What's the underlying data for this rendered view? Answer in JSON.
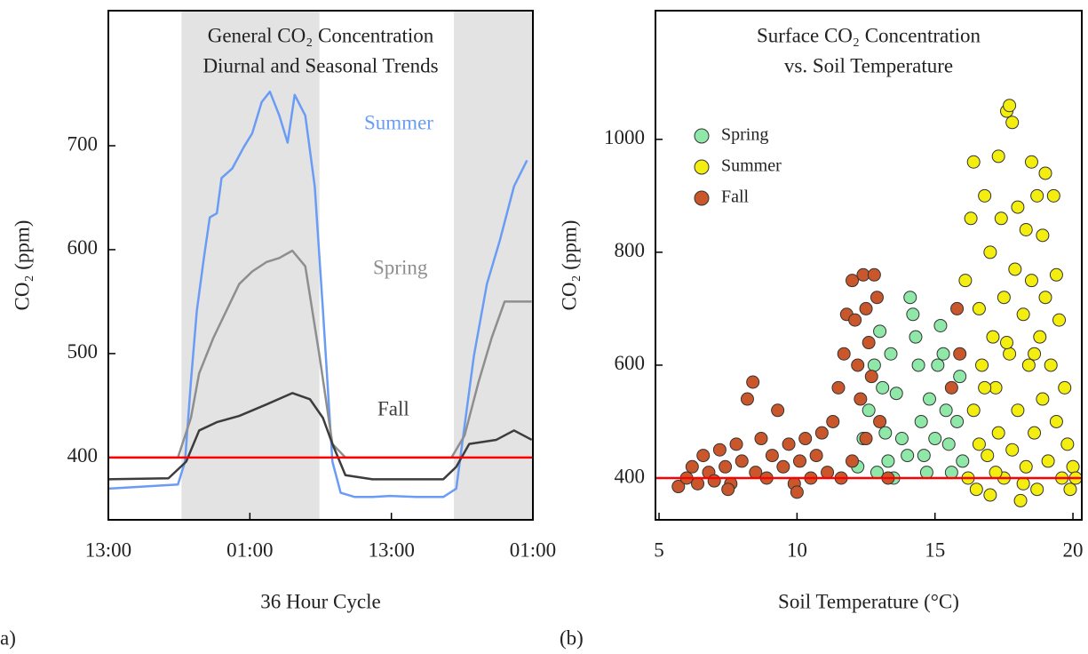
{
  "chart_data": [
    {
      "type": "line",
      "panel_label": "a)",
      "title": [
        "General CO₂ Concentration",
        "Diurnal and Seasonal Trends"
      ],
      "xlabel": "36 Hour Cycle",
      "ylabel": "CO₂ (ppm)",
      "xlim": [
        0,
        36
      ],
      "ylim": [
        340,
        830
      ],
      "xticks": [
        {
          "value": 0,
          "label": "13:00"
        },
        {
          "value": 12,
          "label": "01:00"
        },
        {
          "value": 24,
          "label": "13:00"
        },
        {
          "value": 36,
          "label": "01:00"
        }
      ],
      "yticks": [
        400,
        500,
        600,
        700
      ],
      "reference_line": 400,
      "reference_color": "#ff0000",
      "shaded_spans": [
        [
          6.2,
          17.9
        ],
        [
          29.3,
          36
        ]
      ],
      "series": [
        {
          "name": "Summer",
          "color": "#6a9cf5",
          "x": [
            0,
            5.9,
            6.5,
            7.0,
            7.5,
            8.1,
            8.6,
            9.2,
            9.6,
            10.5,
            11.5,
            12.2,
            13.0,
            13.7,
            14.5,
            15.2,
            15.8,
            16.7,
            17.5,
            18.2,
            19.0,
            19.7,
            20.9,
            22.4,
            23.9,
            26.1,
            28.4,
            29.5,
            30.0,
            31.0,
            32.1,
            33.2,
            34.4,
            35.5
          ],
          "values": [
            370,
            374,
            396,
            473,
            541,
            592,
            631,
            635,
            669,
            678,
            699,
            712,
            742,
            752,
            729,
            703,
            749,
            729,
            661,
            541,
            396,
            366,
            362,
            362,
            363,
            362,
            362,
            370,
            413,
            498,
            567,
            609,
            661,
            686
          ]
        },
        {
          "name": "Spring",
          "color": "#8e8e8e",
          "x": [
            0,
            5.9,
            7.0,
            7.7,
            8.9,
            10.0,
            11.1,
            12.2,
            13.4,
            14.5,
            15.6,
            16.7,
            17.9,
            19.0,
            20.1,
            24.6,
            29.1,
            30.2,
            31.4,
            32.5,
            33.6,
            35.9
          ],
          "values": [
            400,
            400,
            438,
            481,
            515,
            541,
            567,
            579,
            588,
            592,
            599,
            584,
            498,
            413,
            400,
            400,
            400,
            421,
            473,
            515,
            550,
            550
          ]
        },
        {
          "name": "Fall",
          "color": "#3c3c3c",
          "x": [
            0,
            5.1,
            6.6,
            7.7,
            9.2,
            11.1,
            13.4,
            15.6,
            17.1,
            18.2,
            19.0,
            20.1,
            22.4,
            28.4,
            29.5,
            30.6,
            32.9,
            34.4,
            35.9
          ],
          "values": [
            379,
            380,
            396,
            426,
            434,
            440,
            451,
            462,
            456,
            438,
            413,
            383,
            379,
            379,
            391,
            413,
            417,
            426,
            417
          ]
        }
      ]
    },
    {
      "type": "scatter",
      "panel_label": "(b)",
      "title": [
        "Surface CO₂ Concentration",
        "vs. Soil Temperature"
      ],
      "xlabel": "Soil Temperature (°C)",
      "ylabel": "CO₂ (ppm)",
      "xlim": [
        4.87,
        20.32
      ],
      "ylim": [
        326,
        1228
      ],
      "xticks": [
        5,
        10,
        15,
        20
      ],
      "yticks": [
        400,
        600,
        800,
        1000
      ],
      "reference_line": 400,
      "reference_color": "#ff0000",
      "legend": "upper left",
      "series": [
        {
          "name": "Spring",
          "color": "#8fe8a8",
          "x": [
            12.2,
            12.4,
            12.6,
            12.8,
            13.0,
            13.1,
            13.2,
            13.3,
            13.4,
            13.6,
            13.8,
            14.0,
            14.1,
            14.2,
            14.3,
            14.4,
            14.5,
            14.6,
            14.8,
            15.0,
            15.1,
            15.2,
            15.3,
            15.4,
            15.5,
            15.6,
            15.8,
            15.9,
            16.0,
            13.5,
            14.7,
            12.9
          ],
          "values": [
            420,
            470,
            520,
            600,
            660,
            560,
            480,
            430,
            620,
            550,
            470,
            440,
            720,
            690,
            650,
            600,
            500,
            440,
            540,
            470,
            600,
            670,
            620,
            520,
            460,
            410,
            500,
            580,
            430,
            400,
            410,
            410
          ]
        },
        {
          "name": "Summer",
          "color": "#f4ee10",
          "x": [
            16.1,
            16.2,
            16.3,
            16.4,
            16.4,
            16.5,
            16.6,
            16.7,
            16.8,
            16.9,
            17.0,
            17.0,
            17.1,
            17.2,
            17.3,
            17.3,
            17.4,
            17.5,
            17.5,
            17.6,
            17.7,
            17.7,
            17.8,
            17.8,
            17.9,
            18.0,
            18.0,
            18.1,
            18.2,
            18.3,
            18.3,
            18.4,
            18.5,
            18.5,
            18.6,
            18.7,
            18.7,
            18.8,
            18.9,
            18.9,
            19.0,
            19.1,
            19.2,
            19.3,
            19.4,
            19.5,
            19.6,
            19.7,
            19.8,
            19.9,
            20.0,
            20.1,
            16.8,
            17.2,
            18.6,
            19.0,
            17.6,
            18.2,
            16.6,
            19.4
          ],
          "values": [
            750,
            400,
            860,
            960,
            520,
            380,
            700,
            600,
            900,
            440,
            800,
            370,
            650,
            560,
            970,
            480,
            860,
            720,
            400,
            1050,
            1060,
            620,
            1030,
            450,
            770,
            880,
            520,
            360,
            690,
            840,
            420,
            600,
            960,
            750,
            480,
            900,
            380,
            650,
            830,
            540,
            720,
            430,
            600,
            900,
            500,
            680,
            400,
            560,
            460,
            380,
            420,
            400,
            560,
            410,
            620,
            940,
            640,
            390,
            460,
            760
          ]
        },
        {
          "name": "Fall",
          "color": "#c9572b",
          "x": [
            5.7,
            6.0,
            6.2,
            6.4,
            6.6,
            6.8,
            7.0,
            7.2,
            7.4,
            7.6,
            7.8,
            8.0,
            8.2,
            8.4,
            8.5,
            8.7,
            8.9,
            9.1,
            9.3,
            9.5,
            9.7,
            9.9,
            10.1,
            10.3,
            10.5,
            10.7,
            10.9,
            11.1,
            11.3,
            11.5,
            11.7,
            11.8,
            12.0,
            12.1,
            12.2,
            12.3,
            12.4,
            12.5,
            12.6,
            12.7,
            12.8,
            12.9,
            12.5,
            12.0,
            11.6,
            13.0,
            15.6,
            15.8,
            15.9,
            10.0,
            7.5,
            13.3
          ],
          "values": [
            385,
            400,
            420,
            390,
            440,
            410,
            395,
            450,
            420,
            390,
            460,
            430,
            540,
            570,
            410,
            470,
            400,
            440,
            520,
            420,
            460,
            390,
            430,
            470,
            400,
            440,
            480,
            410,
            500,
            560,
            620,
            690,
            750,
            680,
            600,
            540,
            760,
            700,
            640,
            580,
            760,
            720,
            470,
            430,
            400,
            500,
            560,
            700,
            620,
            375,
            380,
            400
          ]
        }
      ]
    }
  ]
}
